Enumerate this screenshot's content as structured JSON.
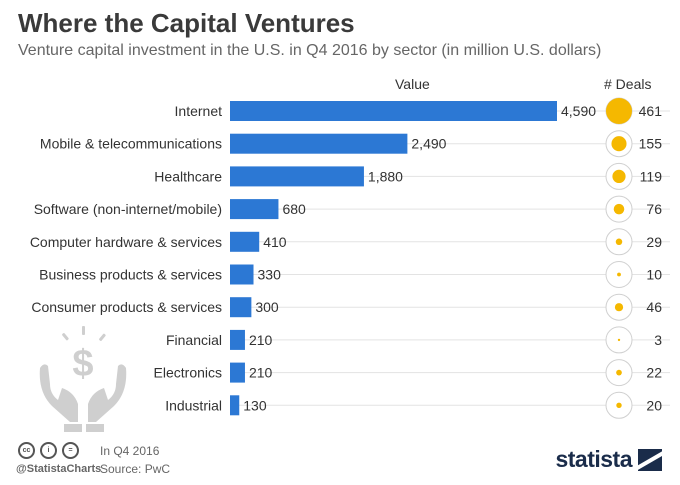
{
  "header": {
    "title": "Where the Capital Ventures",
    "subtitle": "Venture capital investment in the U.S. in Q4 2016 by sector (in million U.S. dollars)"
  },
  "columns": {
    "value_label": "Value",
    "deals_label": "# Deals"
  },
  "footer": {
    "handle": "@StatistaCharts",
    "period": "In Q4 2016",
    "source": "Source: PwC",
    "cc_icons": [
      "cc",
      "i",
      "="
    ],
    "brand": "statista"
  },
  "colors": {
    "bar": "#2c78d4",
    "bubble": "#f5b800",
    "ring": "#d0d0d0",
    "gridline": "#e3e3e3",
    "icon_grey": "#cfcfcf"
  },
  "icons": [
    "money-hands-icon",
    "statista-logo-icon",
    "creative-commons-icon"
  ],
  "chart_data": {
    "type": "bar",
    "orientation": "horizontal",
    "categories": [
      "Internet",
      "Mobile & telecommunications",
      "Healthcare",
      "Software (non-internet/mobile)",
      "Computer hardware & services",
      "Business products & services",
      "Consumer products & services",
      "Financial",
      "Electronics",
      "Industrial"
    ],
    "series": [
      {
        "name": "Value",
        "values": [
          4590,
          2490,
          1880,
          680,
          410,
          330,
          300,
          210,
          210,
          130
        ]
      },
      {
        "name": "# Deals",
        "values": [
          461,
          155,
          119,
          76,
          29,
          10,
          46,
          3,
          22,
          20
        ]
      }
    ],
    "value_labels": [
      "4,590",
      "2,490",
      "1,880",
      "680",
      "410",
      "330",
      "300",
      "210",
      "210",
      "130"
    ],
    "deal_labels": [
      "461",
      "155",
      "119",
      "76",
      "29",
      "10",
      "46",
      "3",
      "22",
      "20"
    ],
    "xlim": [
      0,
      4590
    ],
    "grid": true,
    "legend": "none"
  }
}
